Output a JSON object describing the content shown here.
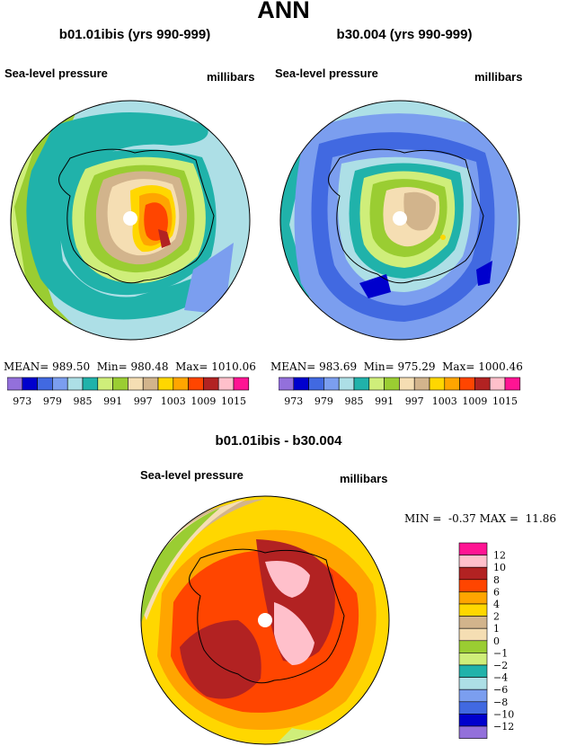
{
  "title": "ANN",
  "colors": {
    "-13": "#9370DB",
    "-11": "#0000CD",
    "-9": "#4169E1",
    "-7": "#7B9EEF",
    "-5": "#ADDFE6",
    "-3": "#20B2AA",
    "-1.5": "#9ACD32",
    "-0.5": "#CFEE7A",
    "0.5": "#F5DEB3",
    "1.5": "#D2B48C",
    "3": "#FFD700",
    "5": "#FFA500",
    "7": "#FF4500",
    "9": "#B22222",
    "11": "#FFC0CB",
    "13": "#FF1493"
  },
  "chart_data": [
    {
      "type": "polar-contour-map",
      "title": "b01.01ibis (yrs 990-999)",
      "left_label": "Sea-level pressure",
      "right_label": "millibars",
      "stats": {
        "mean_label": "MEAN=",
        "mean": "989.50",
        "min_label": "Min=",
        "min": "980.48",
        "max_label": "Max=",
        "max": "1010.06"
      },
      "colorbar": {
        "levels": [
          973,
          976,
          979,
          982,
          985,
          988,
          991,
          994,
          997,
          1000,
          1003,
          1006,
          1009,
          1012,
          1015
        ],
        "labels": [
          "973",
          "979",
          "985",
          "991",
          "997",
          "1003",
          "1009",
          "1015"
        ],
        "colors": [
          "#9370DB",
          "#0000CD",
          "#4169E1",
          "#7B9EEF",
          "#ADDFE6",
          "#20B2AA",
          "#CFEE7A",
          "#9ACD32",
          "#F5DEB3",
          "#D2B48C",
          "#FFD700",
          "#FFA500",
          "#FF4500",
          "#B22222",
          "#FFC0CB",
          "#FF1493"
        ]
      }
    },
    {
      "type": "polar-contour-map",
      "title": "b30.004 (yrs 990-999)",
      "left_label": "Sea-level pressure",
      "right_label": "millibars",
      "stats": {
        "mean_label": "MEAN=",
        "mean": "983.69",
        "min_label": "Min=",
        "min": "975.29",
        "max_label": "Max=",
        "max": "1000.46"
      },
      "colorbar": {
        "levels": [
          973,
          976,
          979,
          982,
          985,
          988,
          991,
          994,
          997,
          1000,
          1003,
          1006,
          1009,
          1012,
          1015
        ],
        "labels": [
          "973",
          "979",
          "985",
          "991",
          "997",
          "1003",
          "1009",
          "1015"
        ],
        "colors": [
          "#9370DB",
          "#0000CD",
          "#4169E1",
          "#7B9EEF",
          "#ADDFE6",
          "#20B2AA",
          "#CFEE7A",
          "#9ACD32",
          "#F5DEB3",
          "#D2B48C",
          "#FFD700",
          "#FFA500",
          "#FF4500",
          "#B22222",
          "#FFC0CB",
          "#FF1493"
        ]
      }
    },
    {
      "type": "polar-contour-map",
      "title": "b01.01ibis - b30.004",
      "left_label": "Sea-level pressure",
      "right_label": "millibars",
      "stats": {
        "min_label": "MIN =",
        "min": "-0.37",
        "max_label": "MAX =",
        "max": "11.86"
      },
      "colorbar": {
        "levels": [
          -12,
          -10,
          -8,
          -6,
          -4,
          -2,
          -1,
          0,
          1,
          2,
          4,
          6,
          8,
          10,
          12
        ],
        "labels": [
          "12",
          "10",
          "8",
          "6",
          "4",
          "2",
          "1",
          "0",
          "−1",
          "−2",
          "−4",
          "−6",
          "−8",
          "−10",
          "−12"
        ],
        "colors_top_to_bottom": [
          "#FF1493",
          "#FFC0CB",
          "#B22222",
          "#FF4500",
          "#FFA500",
          "#FFD700",
          "#D2B48C",
          "#F5DEB3",
          "#9ACD32",
          "#CFEE7A",
          "#20B2AA",
          "#ADDFE6",
          "#7B9EEF",
          "#4169E1",
          "#0000CD",
          "#9370DB"
        ]
      }
    }
  ]
}
